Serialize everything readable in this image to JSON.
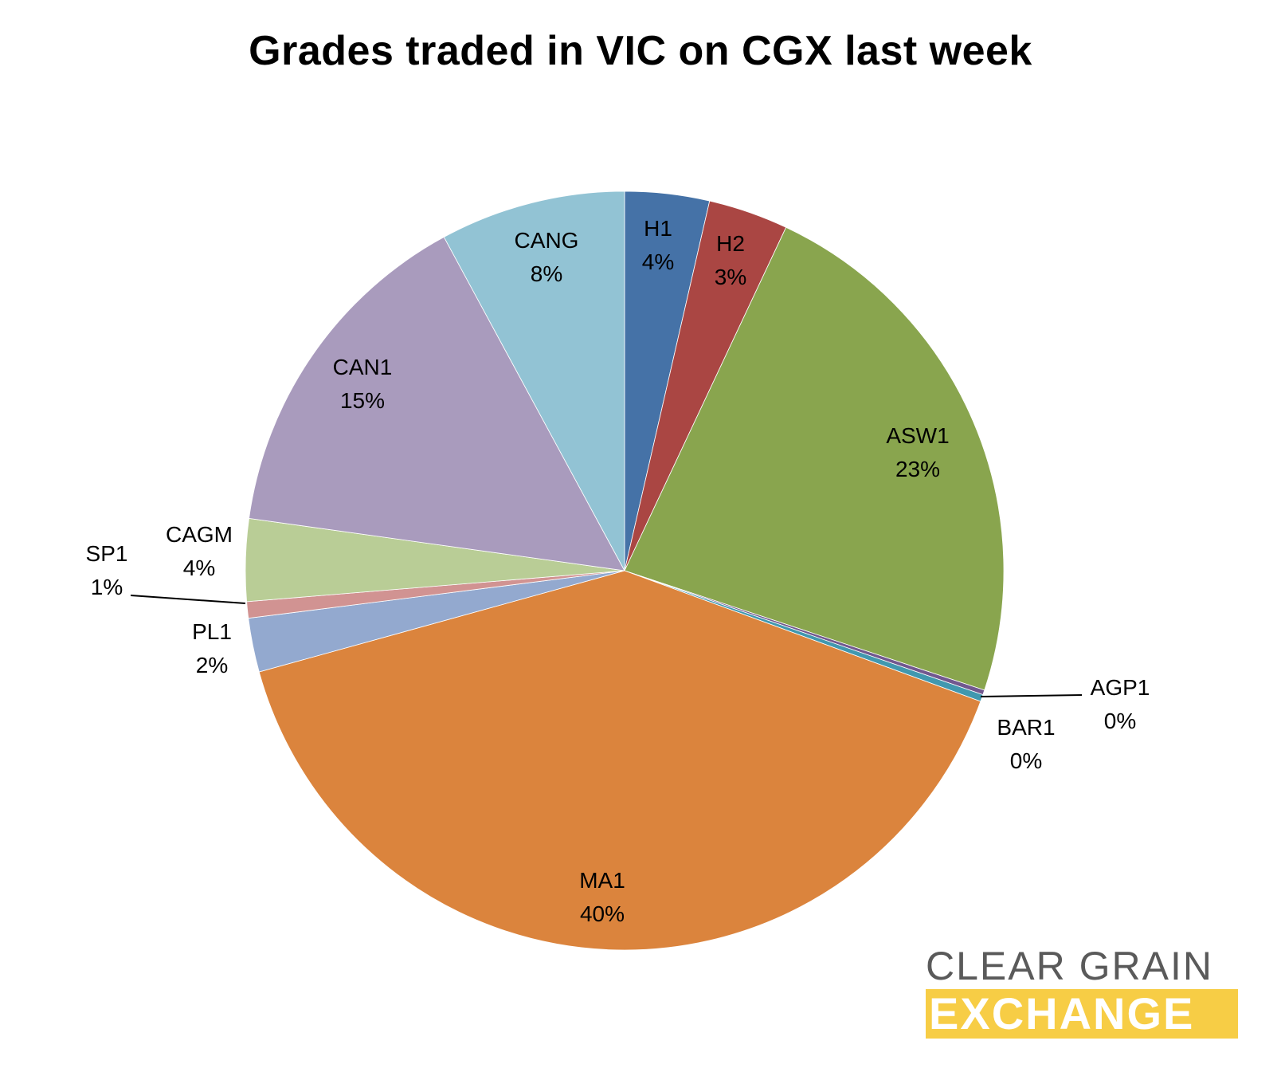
{
  "chart_data": {
    "type": "pie",
    "title": "Grades traded in VIC on CGX last week",
    "slices": [
      {
        "label": "H1",
        "value_label": "4%",
        "value": 3.6,
        "color": "#4572a7"
      },
      {
        "label": "H2",
        "value_label": "3%",
        "value": 3.4,
        "color": "#aa4643"
      },
      {
        "label": "ASW1",
        "value_label": "23%",
        "value": 23.1,
        "color": "#89a54e"
      },
      {
        "label": "AGP1",
        "value_label": "0%",
        "value": 0.2,
        "color": "#71588f"
      },
      {
        "label": "BAR1",
        "value_label": "0%",
        "value": 0.3,
        "color": "#4198af"
      },
      {
        "label": "MA1",
        "value_label": "40%",
        "value": 40.1,
        "color": "#db843d"
      },
      {
        "label": "PL1",
        "value_label": "2%",
        "value": 2.3,
        "color": "#93a9cf"
      },
      {
        "label": "SP1",
        "value_label": "1%",
        "value": 0.7,
        "color": "#d19392"
      },
      {
        "label": "CAGM",
        "value_label": "4%",
        "value": 3.5,
        "color": "#b9cd96"
      },
      {
        "label": "CAN1",
        "value_label": "15%",
        "value": 14.9,
        "color": "#a99bbd"
      },
      {
        "label": "CANG",
        "value_label": "8%",
        "value": 7.9,
        "color": "#92c3d4"
      }
    ],
    "start_angle": "12 o'clock",
    "direction": "clockwise",
    "legend": "none"
  },
  "logo": {
    "line1": "CLEAR GRAIN",
    "line2": "EXCHANGE",
    "accent_color": "#f7cd45"
  }
}
